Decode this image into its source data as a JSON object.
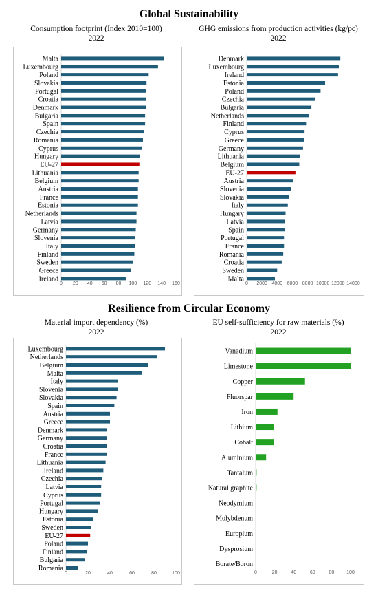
{
  "sections": {
    "global": "Global Sustainability",
    "resilience": "Resilience from Circular Economy"
  },
  "chart_data": [
    {
      "type": "bar",
      "orientation": "horizontal",
      "title": "Consumption footprint (Index 2010=100)",
      "subtitle": "2022",
      "categories": [
        "Malta",
        "Luxembourg",
        "Poland",
        "Slovakia",
        "Portugal",
        "Croatia",
        "Denmark",
        "Bulgaria",
        "Spain",
        "Czechia",
        "Romania",
        "Cyprus",
        "Hungary",
        "EU-27",
        "Lithuania",
        "Belgium",
        "Austria",
        "France",
        "Estonia",
        "Netherlands",
        "Latvia",
        "Germany",
        "Slovenia",
        "Italy",
        "Finland",
        "Sweden",
        "Greece",
        "Ireland"
      ],
      "values": [
        143,
        135,
        122,
        119,
        118,
        118,
        118,
        117,
        117,
        115,
        114,
        113,
        110,
        109,
        108,
        108,
        107,
        107,
        107,
        105,
        105,
        104,
        103,
        103,
        102,
        100,
        97,
        90
      ],
      "highlight": "EU-27",
      "xlim": [
        0,
        160
      ],
      "xticks": [
        0,
        20,
        40,
        60,
        80,
        100,
        120,
        140,
        160
      ],
      "colors": {
        "bar": "#1f5c7a",
        "highlight": "#c00000"
      }
    },
    {
      "type": "bar",
      "orientation": "horizontal",
      "title": "GHG emissions from production activities (kg/pc)",
      "subtitle": "2022",
      "categories": [
        "Denmark",
        "Luxembourg",
        "Ireland",
        "Estonia",
        "Poland",
        "Czechia",
        "Bulgaria",
        "Netherlands",
        "Finland",
        "Cyprus",
        "Greece",
        "Germany",
        "Lithuania",
        "Belgium",
        "EU-27",
        "Austria",
        "Slovenia",
        "Slovakia",
        "Italy",
        "Hungary",
        "Latvia",
        "Spain",
        "Portugal",
        "France",
        "Romania",
        "Croatia",
        "Sweden",
        "Malta"
      ],
      "values": [
        12300,
        12100,
        12000,
        10300,
        9700,
        9000,
        8500,
        8200,
        7800,
        7600,
        7500,
        7400,
        7000,
        6900,
        6400,
        6100,
        5800,
        5600,
        5400,
        5100,
        5000,
        5000,
        4900,
        4900,
        4800,
        4600,
        4000,
        3700
      ],
      "highlight": "EU-27",
      "xlim": [
        0,
        14000
      ],
      "xticks": [
        0,
        2000,
        4000,
        6000,
        8000,
        10000,
        12000,
        14000
      ],
      "colors": {
        "bar": "#1f5c7a",
        "highlight": "#c00000"
      }
    },
    {
      "type": "bar",
      "orientation": "horizontal",
      "title": "Material import dependency (%)",
      "subtitle": "2022",
      "categories": [
        "Luxembourg",
        "Netherlands",
        "Belgium",
        "Malta",
        "Italy",
        "Slovenia",
        "Slovakia",
        "Spain",
        "Austria",
        "Greece",
        "Denmark",
        "Germany",
        "Croatia",
        "France",
        "Lithuania",
        "Ireland",
        "Czechia",
        "Latvia",
        "Cyprus",
        "Portugal",
        "Hungary",
        "Estonia",
        "Sweden",
        "EU-27",
        "Poland",
        "Finland",
        "Bulgaria",
        "Romania"
      ],
      "values": [
        90,
        83,
        75,
        69,
        47,
        47,
        46,
        44,
        40,
        40,
        37,
        37,
        37,
        37,
        36,
        34,
        33,
        32,
        32,
        31,
        29,
        25,
        23,
        22,
        20,
        19,
        17,
        11
      ],
      "highlight": "EU-27",
      "xlim": [
        0,
        100
      ],
      "xticks": [
        0,
        20,
        40,
        60,
        80,
        100
      ],
      "colors": {
        "bar": "#1f5c7a",
        "highlight": "#c00000"
      }
    },
    {
      "type": "bar",
      "orientation": "horizontal",
      "title": "EU self-sufficiency for raw materials (%)",
      "subtitle": "2022",
      "categories": [
        "Vanadium",
        "Limestone",
        "Copper",
        "Fluorspar",
        "Iron",
        "Lithium",
        "Cobalt",
        "Aluminium",
        "Tantalum",
        "Natural graphite",
        "Neodymium",
        "Molybdenum",
        "Europium",
        "Dysprosium",
        "Borate/Boron"
      ],
      "values": [
        100,
        100,
        52,
        40,
        23,
        19,
        19,
        11,
        1,
        1,
        0,
        0,
        0,
        0,
        0
      ],
      "xlim": [
        0,
        100
      ],
      "xticks": [
        0,
        20,
        40,
        60,
        80,
        100
      ],
      "colors": {
        "bar": "#22a122"
      }
    }
  ]
}
